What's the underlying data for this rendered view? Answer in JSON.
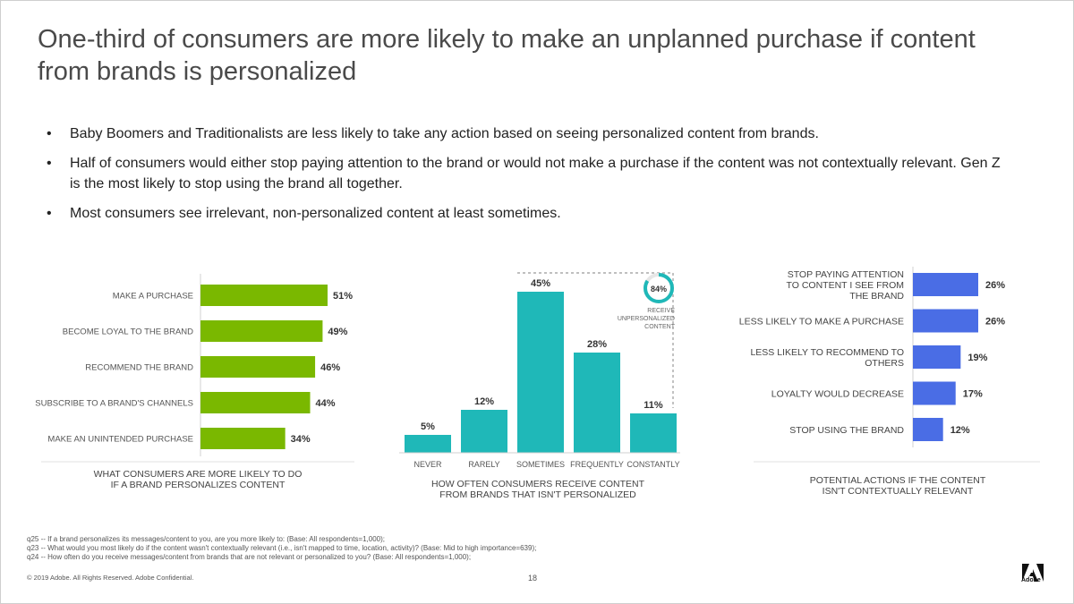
{
  "slide": {
    "title_line1": "One-third of consumers are more likely to make an unplanned purchase if content",
    "title_line2": "from brands is personalized",
    "bullets": [
      "Baby Boomers and Traditionalists are less likely to take any action based on seeing personalized content from brands.",
      "Half of consumers would either stop paying attention to the brand or would not make a purchase if the content was not contextually relevant.  Gen Z is the most likely to stop using the brand all together.",
      "Most consumers see irrelevant, non-personalized content at least sometimes."
    ],
    "footnotes": [
      "q25 -- If a brand personalizes its messages/content to you, are you more likely to: (Base: All respondents=1,000);",
      "q23 -- What would you most likely do if the content wasn't contextually relevant (i.e., isn't mapped to time, location, activity)? (Base: Mid to high importance=639);",
      "q24 -- How often do you receive messages/content from brands that are not relevant or personalized to you? (Base: All respondents=1,000);"
    ],
    "copyright": "© 2019 Adobe.  All Rights Reserved.  Adobe Confidential.",
    "page_number": "18",
    "logo_text": "Adobe"
  },
  "chart_data": [
    {
      "type": "bar",
      "orientation": "horizontal",
      "caption_lines": [
        "WHAT CONSUMERS ARE MORE LIKELY TO DO",
        "IF A BRAND PERSONALIZES CONTENT"
      ],
      "categories": [
        "MAKE A PURCHASE",
        "BECOME LOYAL TO THE BRAND",
        "RECOMMEND THE BRAND",
        "SUBSCRIBE TO A BRAND'S CHANNELS",
        "MAKE AN UNINTENDED PURCHASE"
      ],
      "values": [
        51,
        49,
        46,
        44,
        34
      ],
      "labels": [
        "51%",
        "49%",
        "46%",
        "44%",
        "34%"
      ],
      "color": "#7ab800",
      "xlim": [
        0,
        60
      ]
    },
    {
      "type": "bar",
      "orientation": "vertical",
      "caption_lines": [
        "HOW OFTEN CONSUMERS RECEIVE CONTENT",
        "FROM BRANDS THAT ISN'T PERSONALIZED"
      ],
      "categories": [
        "NEVER",
        "RARELY",
        "SOMETIMES",
        "FREQUENTLY",
        "CONSTANTLY"
      ],
      "values": [
        5,
        12,
        45,
        28,
        11
      ],
      "labels": [
        "5%",
        "12%",
        "45%",
        "28%",
        "11%"
      ],
      "color": "#1fb8b8",
      "ylim": [
        0,
        45
      ],
      "annotation": {
        "value_label": "84%",
        "value": 84,
        "text_lines": [
          "RECEIVE",
          "UNPERSONALIZED",
          "CONTENT"
        ]
      }
    },
    {
      "type": "bar",
      "orientation": "horizontal",
      "caption_lines": [
        "POTENTIAL ACTIONS IF THE CONTENT",
        "ISN'T CONTEXTUALLY RELEVANT"
      ],
      "categories": [
        [
          "STOP PAYING ATTENTION",
          "TO CONTENT I SEE FROM",
          "THE BRAND"
        ],
        [
          "LESS LIKELY TO MAKE A PURCHASE"
        ],
        [
          "LESS LIKELY TO RECOMMEND TO",
          "OTHERS"
        ],
        [
          "LOYALTY WOULD DECREASE"
        ],
        [
          "STOP USING THE BRAND"
        ]
      ],
      "values": [
        26,
        26,
        19,
        17,
        12
      ],
      "labels": [
        "26%",
        "26%",
        "19%",
        "17%",
        "12%"
      ],
      "color": "#4a6de5",
      "xlim": [
        0,
        45
      ]
    }
  ]
}
